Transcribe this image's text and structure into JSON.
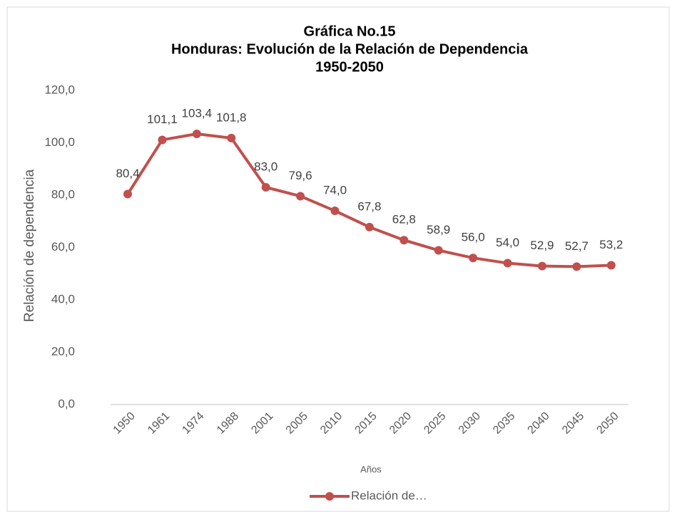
{
  "chart_data": {
    "type": "line",
    "title": [
      "Gráfica No.15",
      "Honduras: Evolución de la Relación de Dependencia",
      "1950-2050"
    ],
    "x_label": "Años",
    "y_label": "Relación de dependencia",
    "categories": [
      "1950",
      "1961",
      "1974",
      "1988",
      "2001",
      "2005",
      "2010",
      "2015",
      "2020",
      "2025",
      "2030",
      "2035",
      "2040",
      "2045",
      "2050"
    ],
    "series": [
      {
        "name": "Relación de…",
        "color": "#c0504d",
        "values": [
          80.4,
          101.1,
          103.4,
          101.8,
          83.0,
          79.6,
          74.0,
          67.8,
          62.8,
          58.9,
          56.0,
          54.0,
          52.9,
          52.7,
          53.2
        ],
        "value_labels": [
          "80,4",
          "101,1",
          "103,4",
          "101,8",
          "83,0",
          "79,6",
          "74,0",
          "67,8",
          "62,8",
          "58,9",
          "56,0",
          "54,0",
          "52,9",
          "52,7",
          "53,2"
        ]
      }
    ],
    "ylim": [
      0,
      120
    ],
    "yticks": [
      {
        "value": 0,
        "label": "0,0"
      },
      {
        "value": 20,
        "label": "20,0"
      },
      {
        "value": 40,
        "label": "40,0"
      },
      {
        "value": 60,
        "label": "60,0"
      },
      {
        "value": 80,
        "label": "80,0"
      },
      {
        "value": 100,
        "label": "100,0"
      },
      {
        "value": 120,
        "label": "120,0"
      }
    ],
    "grid": false,
    "legend": "bottom"
  }
}
